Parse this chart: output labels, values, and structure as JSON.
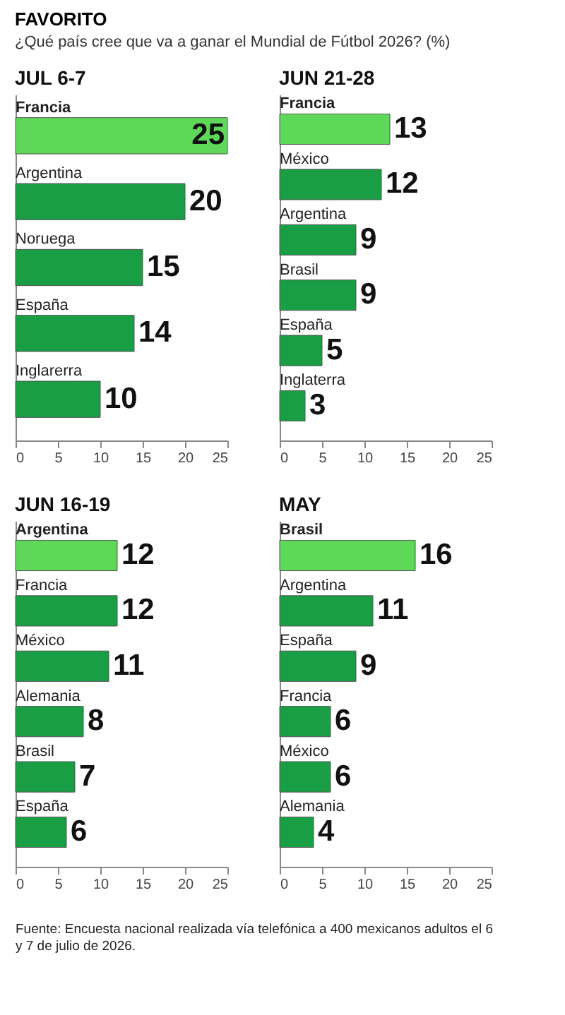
{
  "chart_data": [
    {
      "type": "bar",
      "orientation": "horizontal",
      "title": "JUL 6-7",
      "annotations": [
        "FAVORITO",
        "¿Qué país cree que va a ganar el Mundial de Fútbol 2026? (%)"
      ],
      "categories": [
        "Francia",
        "Argentina",
        "Noruega",
        "España",
        "Inglarerra"
      ],
      "values": [
        25,
        20,
        15,
        14,
        10
      ],
      "colors": [
        "#5fd85a",
        "#1a9e45",
        "#1a9e45",
        "#1a9e45",
        "#1a9e45"
      ],
      "xlim": [
        0,
        25
      ],
      "xticks": [
        0,
        5,
        10,
        15,
        20,
        25
      ],
      "data_labels": true
    },
    {
      "type": "bar",
      "orientation": "horizontal",
      "title": "JUN 21-28",
      "categories": [
        "Francia",
        "México",
        "Argentina",
        "Brasil",
        "España",
        "Inglaterra"
      ],
      "values": [
        13,
        12,
        9,
        9,
        5,
        3
      ],
      "colors": [
        "#5fd85a",
        "#1a9e45",
        "#1a9e45",
        "#1a9e45",
        "#1a9e45",
        "#1a9e45"
      ],
      "xlim": [
        0,
        25
      ],
      "xticks": [
        0,
        5,
        10,
        15,
        20,
        25
      ],
      "data_labels": true
    },
    {
      "type": "bar",
      "orientation": "horizontal",
      "title": "JUN 16-19",
      "categories": [
        "Argentina",
        "Francia",
        "México",
        "Alemania",
        "Brasil",
        "España"
      ],
      "values": [
        12,
        12,
        11,
        8,
        7,
        6
      ],
      "colors": [
        "#5fd85a",
        "#1a9e45",
        "#1a9e45",
        "#1a9e45",
        "#1a9e45",
        "#1a9e45"
      ],
      "xlim": [
        0,
        25
      ],
      "xticks": [
        0,
        5,
        10,
        15,
        20,
        25
      ],
      "data_labels": true
    },
    {
      "type": "bar",
      "orientation": "horizontal",
      "title": "MAY",
      "annotations": [
        "Fuente: Encuesta nacional realizada vía telefónica a 400 mexicanos adultos el 6 y 7 de julio de 2026."
      ],
      "categories": [
        "Brasil",
        "Argentina",
        "España",
        "Francia",
        "México",
        "Alemania"
      ],
      "values": [
        16,
        11,
        9,
        6,
        6,
        4
      ],
      "colors": [
        "#5fd85a",
        "#1a9e45",
        "#1a9e45",
        "#1a9e45",
        "#1a9e45",
        "#1a9e45"
      ],
      "xlim": [
        0,
        25
      ],
      "xticks": [
        0,
        5,
        10,
        15,
        20,
        25
      ],
      "data_labels": true
    }
  ]
}
